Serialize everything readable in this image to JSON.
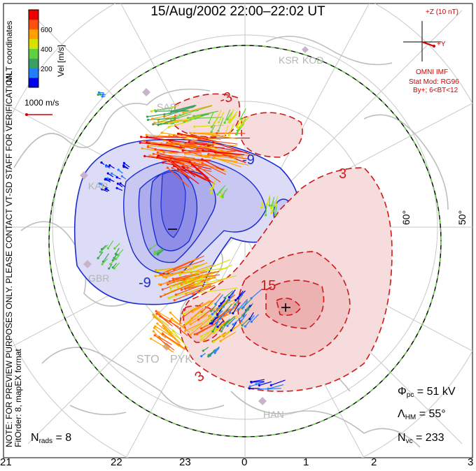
{
  "title": "15/Aug/2002 22:00–22:02 UT",
  "colorbar": {
    "label": "Vel [m/s]",
    "ticks": [
      "600",
      "400",
      "200"
    ],
    "colors": [
      "#0000ee",
      "#2080ff",
      "#3aa060",
      "#60d040",
      "#d8e000",
      "#ffa000",
      "#ff5010",
      "#ee0000"
    ]
  },
  "vector_scale": "1000 m/s",
  "side_text": {
    "coords": "MLT coordinates",
    "contact": "NOTE: FOR PREVIEW PURPOSES ONLY. PLEASE CONTACT VT-SD STAFF FOR VERIFICATION.",
    "fit": "FitOrder: 8, mapEX format"
  },
  "imf": {
    "z_label": "+Z (10 nT)",
    "y_label": "+Y",
    "source": "OMNI IMF",
    "model": "Stat Mod: RG96",
    "condition": "By+; 6<BT<12"
  },
  "latitude_labels": [
    "60°",
    "50°"
  ],
  "station_labels": [
    "KSR",
    "KOD",
    "KAP",
    "GBR",
    "STO",
    "PYK",
    "HAN",
    "SAS"
  ],
  "contour_labels": {
    "neg": [
      "-9",
      "-9",
      "-3"
    ],
    "pos": [
      "3",
      "3",
      "15"
    ]
  },
  "extrema": {
    "min": "−",
    "max": "+"
  },
  "stats": {
    "phi_sym": "Φ",
    "phi_sub": "pc",
    "phi_val": "= 51 kV",
    "lam_sym": "Λ",
    "lam_sub": "HM",
    "lam_val": "= 55°",
    "nvc_sym": "N",
    "nvc_sub": "vc",
    "nvc_val": "= 233",
    "nrads_sym": "N",
    "nrads_sub": "rads",
    "nrads_val": "= 8"
  },
  "mlt_axis": [
    "21",
    "22",
    "23",
    "0",
    "1",
    "2",
    "3"
  ]
}
